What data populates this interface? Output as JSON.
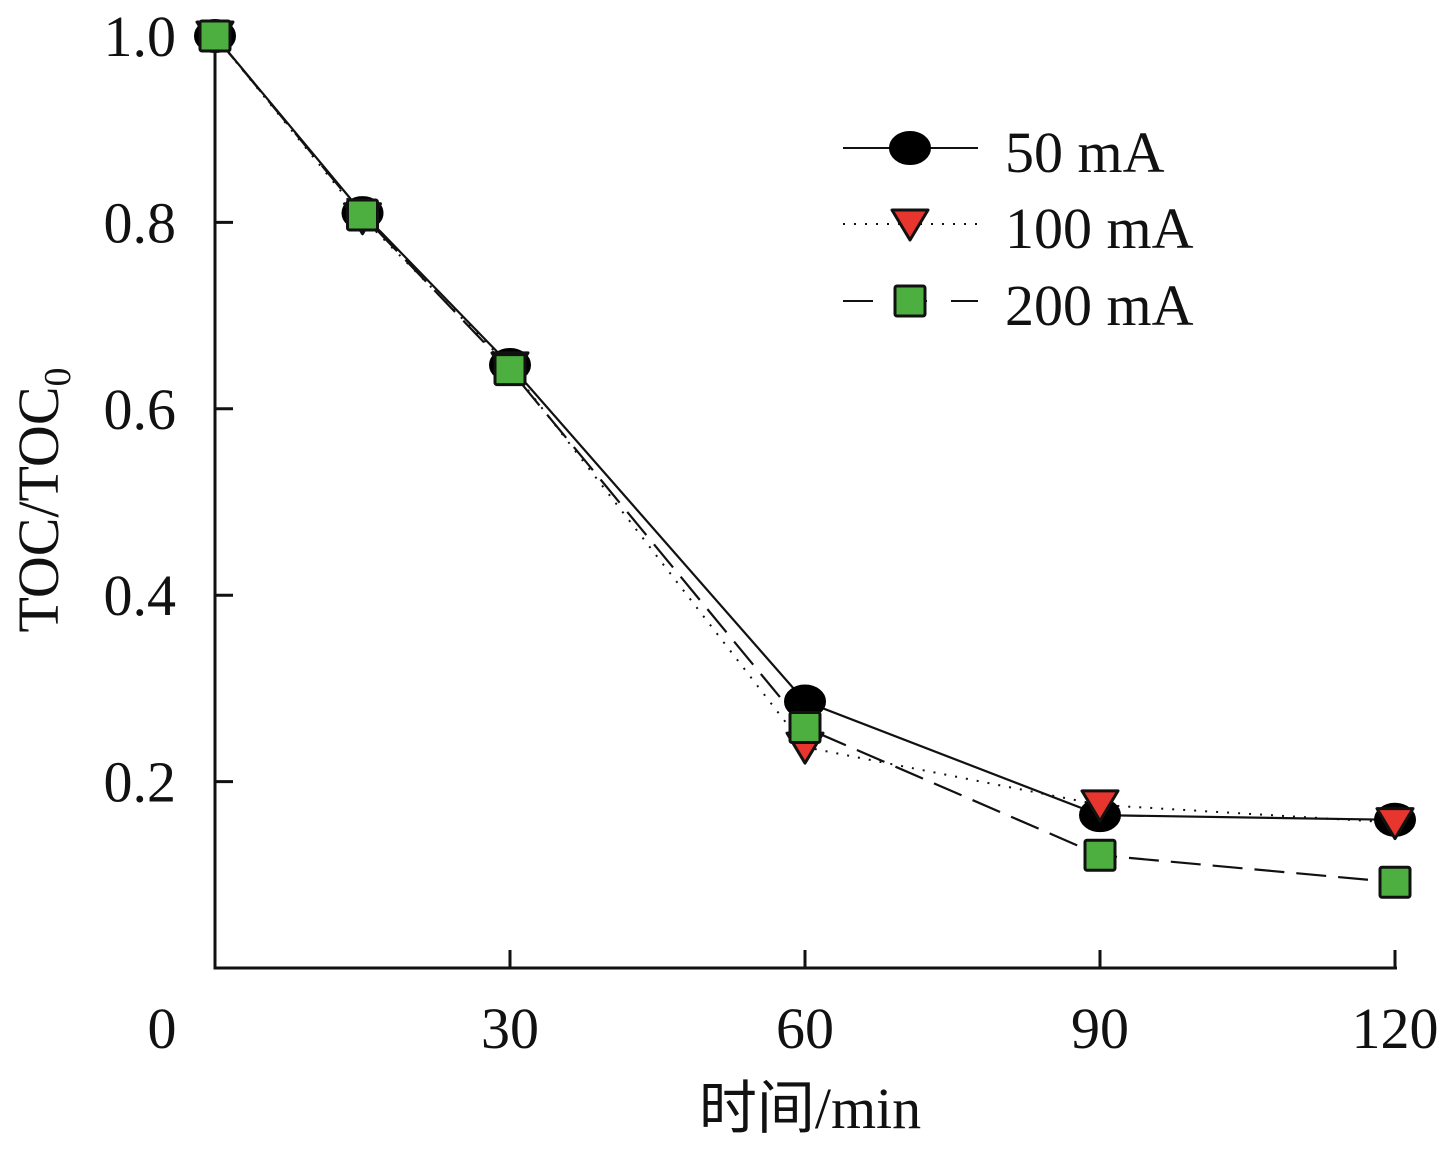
{
  "chart_data": {
    "type": "line",
    "title": "",
    "xlabel": "时间/min",
    "ylabel": "TOC/TOC",
    "ylabel_subscript": "0",
    "xlim": [
      0,
      120
    ],
    "ylim": [
      0,
      1.0
    ],
    "x_ticks": [
      0,
      30,
      60,
      90,
      120
    ],
    "x_tick_labels": [
      "0",
      "30",
      "60",
      "90",
      "120"
    ],
    "y_ticks": [
      0.2,
      0.4,
      0.6,
      0.8,
      1.0
    ],
    "y_tick_labels": [
      "0.2",
      "0.4",
      "0.6",
      "0.8",
      "1.0"
    ],
    "grid": false,
    "legend_position": "top-right",
    "x": [
      0,
      15,
      30,
      60,
      90,
      120
    ],
    "series": [
      {
        "name": "50 mA",
        "marker": "circle",
        "line": "solid",
        "color": "#000000",
        "values": [
          1.0,
          0.81,
          0.647,
          0.286,
          0.164,
          0.159
        ]
      },
      {
        "name": "100 mA",
        "marker": "triangle-down",
        "line": "dotted",
        "color": "#e8352e",
        "values": [
          1.0,
          0.805,
          0.645,
          0.237,
          0.175,
          0.156
        ]
      },
      {
        "name": "200 mA",
        "marker": "square",
        "line": "dashed",
        "color": "#4caf3f",
        "values": [
          1.0,
          0.808,
          0.642,
          0.258,
          0.121,
          0.092
        ]
      }
    ]
  }
}
